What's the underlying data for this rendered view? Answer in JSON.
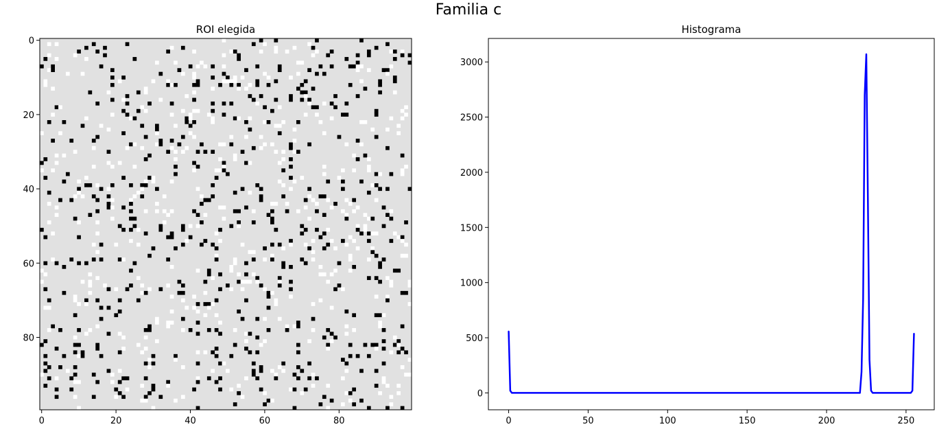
{
  "figure": {
    "suptitle": "Familia c"
  },
  "chart_data": [
    {
      "type": "heatmap",
      "title": "ROI elegida",
      "xlabel": "",
      "ylabel": "",
      "shape": [
        100,
        100
      ],
      "xlim": [
        -0.5,
        99.5
      ],
      "ylim": [
        99.5,
        -0.5
      ],
      "xticks": [
        0,
        20,
        40,
        60,
        80
      ],
      "yticks": [
        0,
        20,
        40,
        60,
        80
      ],
      "xtick_labels": [
        "0",
        "20",
        "40",
        "60",
        "80"
      ],
      "ytick_labels": [
        "0",
        "20",
        "40",
        "60",
        "80"
      ],
      "colormap": "gray",
      "background_value": 225,
      "noise_values": [
        0,
        255
      ],
      "noise_fraction_black": 0.05,
      "noise_fraction_white": 0.05,
      "grid": false
    },
    {
      "type": "line",
      "title": "Histograma",
      "xlabel": "",
      "ylabel": "",
      "xlim": [
        -12.75,
        267.75
      ],
      "ylim": [
        -153,
        3213
      ],
      "xticks": [
        0,
        50,
        100,
        150,
        200,
        250
      ],
      "yticks": [
        0,
        500,
        1000,
        1500,
        2000,
        2500,
        3000
      ],
      "xtick_labels": [
        "0",
        "50",
        "100",
        "150",
        "200",
        "250"
      ],
      "ytick_labels": [
        "0",
        "500",
        "1000",
        "1500",
        "2000",
        "2500",
        "3000"
      ],
      "color": "#0000ff",
      "grid": false,
      "series": [
        {
          "x": [
            0,
            1,
            2,
            220,
            221,
            222,
            223,
            224,
            225,
            226,
            227,
            228,
            229,
            253,
            254,
            255
          ],
          "y": [
            560,
            20,
            0,
            0,
            0,
            190,
            850,
            2700,
            3070,
            1760,
            300,
            20,
            0,
            0,
            20,
            540
          ]
        }
      ]
    }
  ]
}
